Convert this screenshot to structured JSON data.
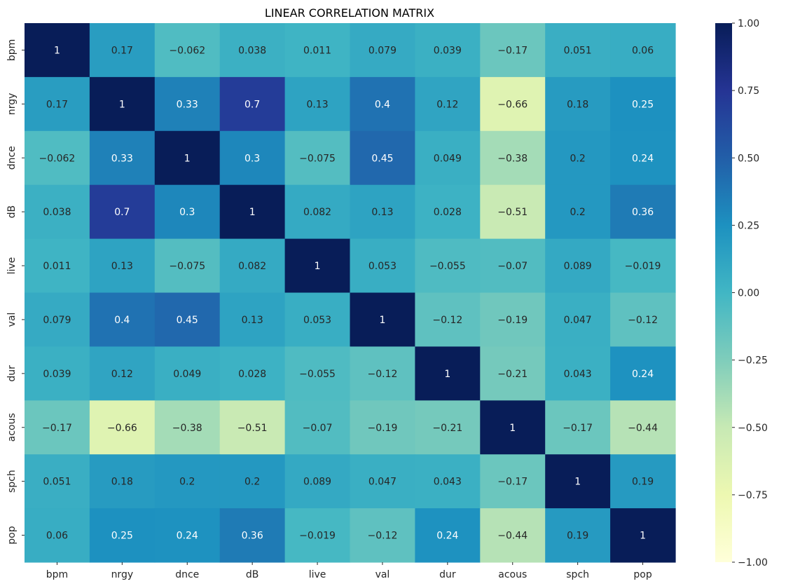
{
  "chart_data": {
    "type": "heatmap",
    "title": "LINEAR CORRELATION MATRIX",
    "xlabel": "",
    "ylabel": "",
    "x_labels": [
      "bpm",
      "nrgy",
      "dnce",
      "dB",
      "live",
      "val",
      "dur",
      "acous",
      "spch",
      "pop"
    ],
    "y_labels": [
      "bpm",
      "nrgy",
      "dnce",
      "dB",
      "live",
      "val",
      "dur",
      "acous",
      "spch",
      "pop"
    ],
    "values": [
      [
        1,
        0.17,
        -0.062,
        0.038,
        0.011,
        0.079,
        0.039,
        -0.17,
        0.051,
        0.06
      ],
      [
        0.17,
        1,
        0.33,
        0.7,
        0.13,
        0.4,
        0.12,
        -0.66,
        0.18,
        0.25
      ],
      [
        -0.062,
        0.33,
        1,
        0.3,
        -0.075,
        0.45,
        0.049,
        -0.38,
        0.2,
        0.24
      ],
      [
        0.038,
        0.7,
        0.3,
        1,
        0.082,
        0.13,
        0.028,
        -0.51,
        0.2,
        0.36
      ],
      [
        0.011,
        0.13,
        -0.075,
        0.082,
        1,
        0.053,
        -0.055,
        -0.07,
        0.089,
        -0.019
      ],
      [
        0.079,
        0.4,
        0.45,
        0.13,
        0.053,
        1,
        -0.12,
        -0.19,
        0.047,
        -0.12
      ],
      [
        0.039,
        0.12,
        0.049,
        0.028,
        -0.055,
        -0.12,
        1,
        -0.21,
        0.043,
        0.24
      ],
      [
        -0.17,
        -0.66,
        -0.38,
        -0.51,
        -0.07,
        -0.19,
        -0.21,
        1,
        -0.17,
        -0.44
      ],
      [
        0.051,
        0.18,
        0.2,
        0.2,
        0.089,
        0.047,
        0.043,
        -0.17,
        1,
        0.19
      ],
      [
        0.06,
        0.25,
        0.24,
        0.36,
        -0.019,
        -0.12,
        0.24,
        -0.44,
        0.19,
        1
      ]
    ],
    "vmin": -1,
    "vmax": 1,
    "colormap": "YlGnBu",
    "colorbar_ticks": [
      "1.00",
      "0.75",
      "0.50",
      "0.25",
      "0.00",
      "−0.25",
      "−0.50",
      "−0.75",
      "−1.00"
    ],
    "colorbar_tick_values": [
      1,
      0.75,
      0.5,
      0.25,
      0,
      -0.25,
      -0.5,
      -0.75,
      -1
    ],
    "annotations": true,
    "grid": false
  }
}
